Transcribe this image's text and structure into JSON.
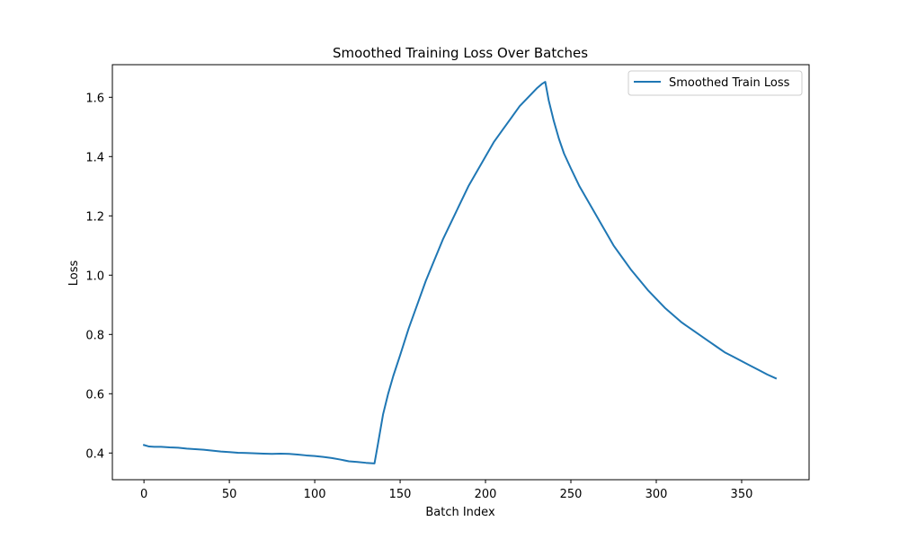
{
  "chart_data": {
    "type": "line",
    "title": "Smoothed Training Loss Over Batches",
    "xlabel": "Batch Index",
    "ylabel": "Loss",
    "xlim": [
      -18.5,
      389.5
    ],
    "ylim": [
      0.31,
      1.71
    ],
    "xticks": [
      0,
      50,
      100,
      150,
      200,
      250,
      300,
      350
    ],
    "yticks": [
      0.4,
      0.6,
      0.8,
      1.0,
      1.2,
      1.4,
      1.6
    ],
    "ytick_labels": [
      "0.4",
      "0.6",
      "0.8",
      "1.0",
      "1.2",
      "1.4",
      "1.6"
    ],
    "grid": false,
    "legend_position": "upper right",
    "series_color": "#1f77b4",
    "series": [
      {
        "name": "Smoothed Train Loss",
        "x": [
          0,
          3,
          6,
          10,
          15,
          20,
          25,
          30,
          35,
          40,
          45,
          50,
          55,
          60,
          65,
          70,
          75,
          80,
          85,
          90,
          95,
          100,
          105,
          110,
          115,
          120,
          125,
          130,
          135,
          137,
          140,
          143,
          146,
          150,
          155,
          160,
          165,
          170,
          175,
          180,
          185,
          190,
          195,
          200,
          205,
          210,
          215,
          220,
          225,
          230,
          233,
          235,
          237,
          240,
          243,
          246,
          250,
          255,
          260,
          265,
          270,
          275,
          280,
          285,
          290,
          295,
          300,
          305,
          310,
          315,
          320,
          325,
          330,
          335,
          340,
          345,
          350,
          355,
          360,
          365,
          370
        ],
        "values": [
          0.427,
          0.422,
          0.421,
          0.421,
          0.419,
          0.418,
          0.415,
          0.413,
          0.411,
          0.408,
          0.405,
          0.403,
          0.401,
          0.4,
          0.399,
          0.398,
          0.397,
          0.398,
          0.397,
          0.395,
          0.392,
          0.39,
          0.387,
          0.383,
          0.378,
          0.372,
          0.37,
          0.367,
          0.365,
          0.43,
          0.53,
          0.6,
          0.66,
          0.73,
          0.82,
          0.9,
          0.98,
          1.05,
          1.12,
          1.18,
          1.24,
          1.3,
          1.35,
          1.4,
          1.45,
          1.49,
          1.53,
          1.57,
          1.6,
          1.63,
          1.645,
          1.652,
          1.59,
          1.52,
          1.46,
          1.41,
          1.36,
          1.3,
          1.25,
          1.2,
          1.15,
          1.1,
          1.06,
          1.02,
          0.985,
          0.95,
          0.92,
          0.89,
          0.865,
          0.84,
          0.82,
          0.8,
          0.78,
          0.76,
          0.74,
          0.725,
          0.71,
          0.695,
          0.68,
          0.665,
          0.652
        ]
      }
    ]
  }
}
